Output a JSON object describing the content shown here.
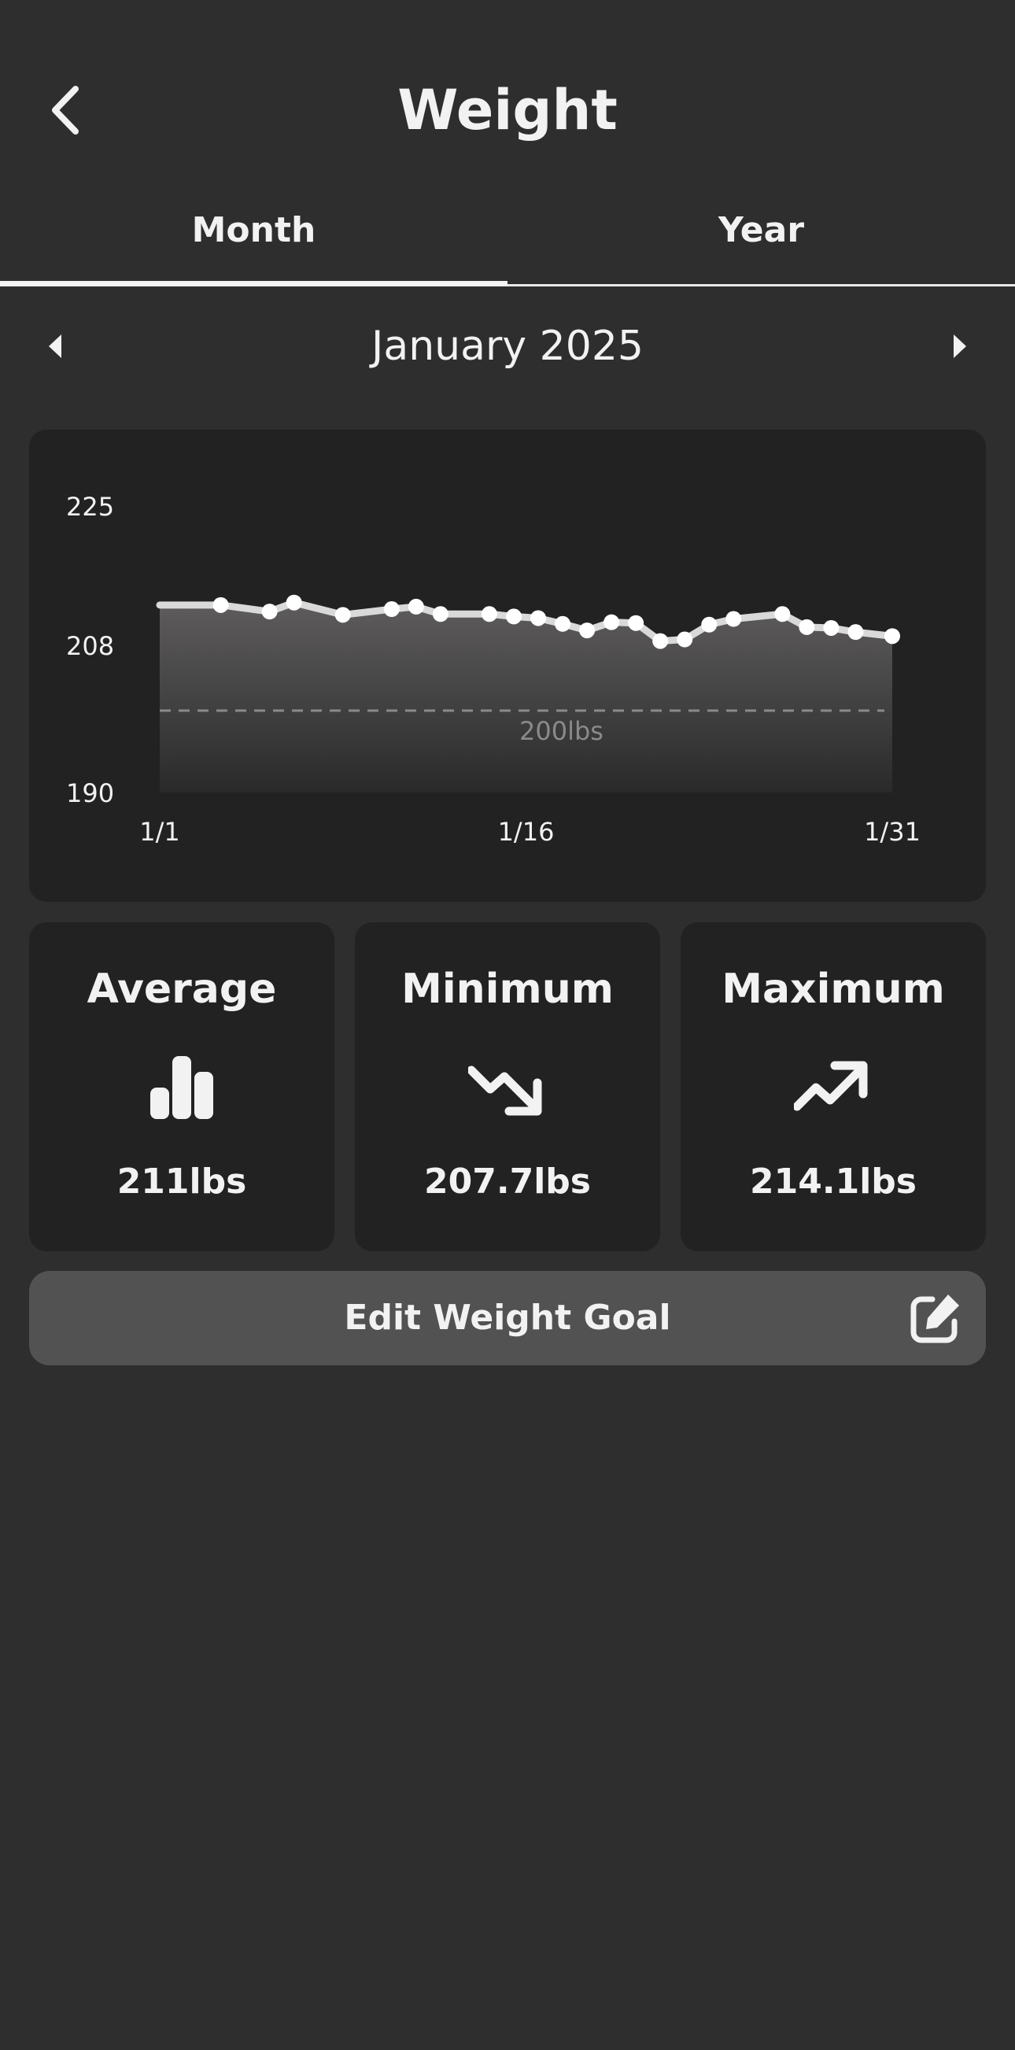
{
  "header": {
    "title": "Weight",
    "back_icon": "chevron-left-icon"
  },
  "tabs": [
    {
      "label": "Month",
      "active": true
    },
    {
      "label": "Year",
      "active": false
    }
  ],
  "month_nav": {
    "label": "January 2025",
    "prev_icon": "caret-left-icon",
    "next_icon": "caret-right-icon"
  },
  "chart_data": {
    "type": "area",
    "title": "",
    "xlabel": "",
    "ylabel": "",
    "ylim": [
      190,
      225
    ],
    "y_ticks": [
      "225",
      "208",
      "190"
    ],
    "x_ticks": [
      {
        "day": 1,
        "label": "1/1"
      },
      {
        "day": 16,
        "label": "1/16"
      },
      {
        "day": 31,
        "label": "1/31"
      }
    ],
    "xlim": [
      1,
      31
    ],
    "x": [
      1,
      3.5,
      5.5,
      6.5,
      8.5,
      10.5,
      11.5,
      12.5,
      14.5,
      15.5,
      16.5,
      17.5,
      18.5,
      19.5,
      20.5,
      21.5,
      22.5,
      23.5,
      24.5,
      26.5,
      27.5,
      28.5,
      29.5,
      31
    ],
    "series": [
      {
        "values": [
          212.9,
          212.9,
          212.1,
          213.2,
          211.7,
          212.4,
          212.7,
          211.8,
          211.8,
          211.5,
          211.3,
          210.6,
          209.8,
          210.8,
          210.7,
          208.5,
          208.7,
          210.5,
          211.2,
          211.8,
          210.2,
          210.1,
          209.6,
          209.1
        ]
      }
    ],
    "goal": {
      "value": 200,
      "label": "200lbs"
    },
    "grid": false,
    "colors": {
      "line": "#d9d9d9",
      "point": "#ffffff",
      "fill_top": "#5e5c5c",
      "fill_bottom": "#2a2a2a",
      "goal_line": "#8a8a8a"
    }
  },
  "stats": [
    {
      "title": "Average",
      "value": "211lbs",
      "icon": "bar-chart-icon"
    },
    {
      "title": "Minimum",
      "value": "207.7lbs",
      "icon": "trend-down-icon"
    },
    {
      "title": "Maximum",
      "value": "214.1lbs",
      "icon": "trend-up-icon"
    }
  ],
  "goal_button": {
    "label": "Edit Weight Goal",
    "icon": "edit-icon"
  },
  "colors": {
    "background": "#2e2e2e",
    "card": "#222222",
    "button": "#525252",
    "text": "#f2f2f2"
  }
}
